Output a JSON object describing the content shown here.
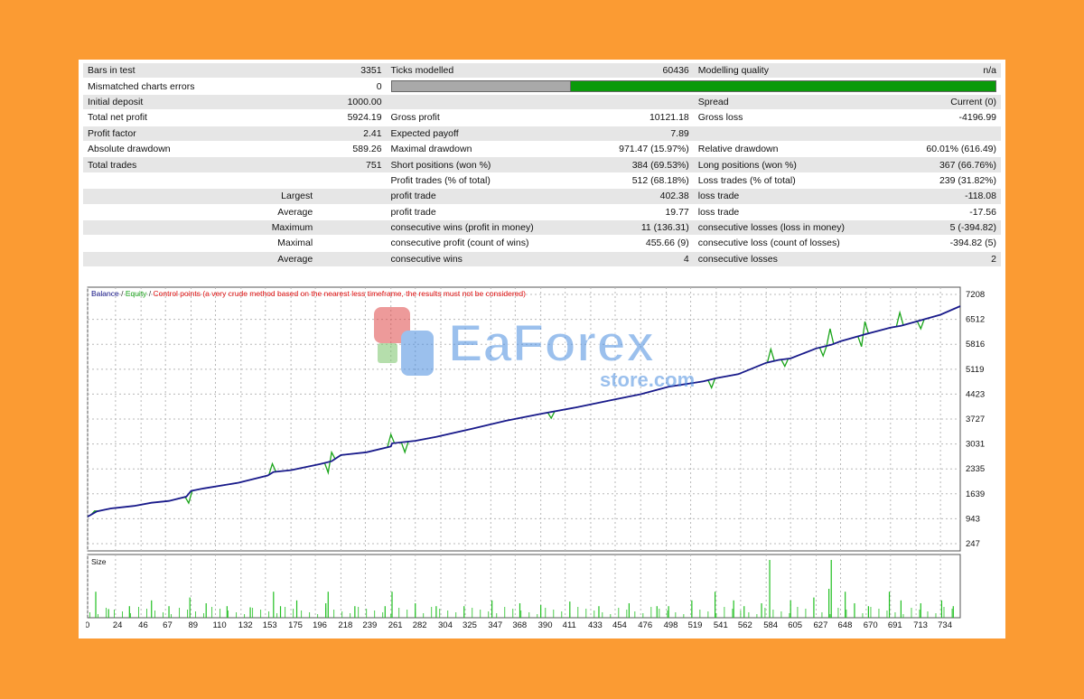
{
  "report": {
    "rows": [
      {
        "l1": "Bars in test",
        "v1": "3351",
        "l2": "Ticks modelled",
        "v2": "60436",
        "l3": "Modelling quality",
        "v3": "n/a"
      },
      {
        "l1": "Mismatched charts errors",
        "v1": "0",
        "bar": true
      },
      {
        "l1": "Initial deposit",
        "v1": "1000.00",
        "l2": "",
        "v2": "",
        "l3": "Spread",
        "v3": "Current (0)"
      },
      {
        "l1": "Total net profit",
        "v1": "5924.19",
        "l2": "Gross profit",
        "v2": "10121.18",
        "l3": "Gross loss",
        "v3": "-4196.99"
      },
      {
        "l1": "Profit factor",
        "v1": "2.41",
        "l2": "Expected payoff",
        "v2": "7.89",
        "l3": "",
        "v3": ""
      },
      {
        "l1": "Absolute drawdown",
        "v1": "589.26",
        "l2": "Maximal drawdown",
        "v2": "971.47 (15.97%)",
        "l3": "Relative drawdown",
        "v3": "60.01% (616.49)"
      },
      {
        "l1": "Total trades",
        "v1": "751",
        "l2": "Short positions (won %)",
        "v2": "384 (69.53%)",
        "l3": "Long positions (won %)",
        "v3": "367 (66.76%)"
      },
      {
        "l1": "",
        "v1": "",
        "l2": "Profit trades (% of total)",
        "v2": "512 (68.18%)",
        "l3": "Loss trades (% of total)",
        "v3": "239 (31.82%)"
      },
      {
        "l1": "Largest",
        "v1": "",
        "l2": "profit trade",
        "v2": "402.38",
        "l3": "loss trade",
        "v3": "-118.08",
        "right": true
      },
      {
        "l1": "Average",
        "v1": "",
        "l2": "profit trade",
        "v2": "19.77",
        "l3": "loss trade",
        "v3": "-17.56",
        "right": true
      },
      {
        "l1": "Maximum",
        "v1": "",
        "l2": "consecutive wins (profit in money)",
        "v2": "11 (136.31)",
        "l3": "consecutive losses (loss in money)",
        "v3": "5 (-394.82)",
        "right": true
      },
      {
        "l1": "Maximal",
        "v1": "",
        "l2": "consecutive profit (count of wins)",
        "v2": "455.66 (9)",
        "l3": "consecutive loss (count of losses)",
        "v3": "-394.82 (5)",
        "right": true
      },
      {
        "l1": "Average",
        "v1": "",
        "l2": "consecutive wins",
        "v2": "4",
        "l3": "consecutive losses",
        "v3": "2",
        "right": true
      }
    ]
  },
  "watermark": {
    "brand": "EaForex",
    "sub": "store.com"
  },
  "chart_data": {
    "type": "line",
    "legend": {
      "balance": "Balance",
      "equity": "Equity",
      "control": "Control points (a very crude method based on the nearest less timeframe, the results must not be considered)"
    },
    "colors": {
      "balance": "#1a1a8c",
      "equity": "#1aa51a",
      "control": "#e01010",
      "size": "#1fbf1f",
      "grid": "#b8b8b8"
    },
    "ylim": [
      247,
      7208
    ],
    "yticks": [
      7208,
      6512,
      5816,
      5119,
      4423,
      3727,
      3031,
      2335,
      1639,
      943,
      247
    ],
    "xlim": [
      0,
      751
    ],
    "xticks": [
      0,
      24,
      46,
      67,
      89,
      110,
      132,
      153,
      175,
      196,
      218,
      239,
      261,
      282,
      304,
      325,
      347,
      368,
      390,
      411,
      433,
      454,
      476,
      498,
      519,
      541,
      562,
      584,
      605,
      627,
      648,
      670,
      691,
      713,
      734
    ],
    "balance": [
      [
        0,
        1000
      ],
      [
        8,
        1150
      ],
      [
        20,
        1230
      ],
      [
        40,
        1300
      ],
      [
        55,
        1390
      ],
      [
        70,
        1440
      ],
      [
        85,
        1560
      ],
      [
        89,
        1720
      ],
      [
        100,
        1790
      ],
      [
        130,
        1950
      ],
      [
        155,
        2150
      ],
      [
        160,
        2250
      ],
      [
        175,
        2300
      ],
      [
        200,
        2470
      ],
      [
        210,
        2550
      ],
      [
        218,
        2720
      ],
      [
        240,
        2800
      ],
      [
        261,
        2960
      ],
      [
        262,
        3050
      ],
      [
        282,
        3120
      ],
      [
        300,
        3230
      ],
      [
        330,
        3450
      ],
      [
        360,
        3680
      ],
      [
        390,
        3870
      ],
      [
        420,
        4050
      ],
      [
        450,
        4250
      ],
      [
        476,
        4420
      ],
      [
        500,
        4630
      ],
      [
        530,
        4780
      ],
      [
        541,
        4870
      ],
      [
        560,
        4980
      ],
      [
        584,
        5300
      ],
      [
        595,
        5380
      ],
      [
        605,
        5420
      ],
      [
        627,
        5700
      ],
      [
        640,
        5800
      ],
      [
        648,
        5900
      ],
      [
        670,
        6100
      ],
      [
        691,
        6280
      ],
      [
        700,
        6330
      ],
      [
        713,
        6450
      ],
      [
        734,
        6640
      ],
      [
        751,
        6880
      ]
    ],
    "equity_dips": [
      [
        5,
        690
      ],
      [
        88,
        1380
      ],
      [
        158,
        1870
      ],
      [
        207,
        2230
      ],
      [
        260,
        2720
      ],
      [
        273,
        2800
      ],
      [
        398,
        3750
      ],
      [
        538,
        4600
      ],
      [
        587,
        4890
      ],
      [
        600,
        5200
      ],
      [
        632,
        5490
      ],
      [
        665,
        5750
      ],
      [
        698,
        6050
      ],
      [
        717,
        6250
      ]
    ],
    "equity_spikes": [
      [
        7,
        1160
      ],
      [
        160,
        2480
      ],
      [
        210,
        2800
      ],
      [
        261,
        3300
      ],
      [
        588,
        5680
      ],
      [
        640,
        6250
      ],
      [
        670,
        6450
      ],
      [
        700,
        6700
      ]
    ],
    "size_label": "Size",
    "size_bars": [
      [
        7,
        0.45
      ],
      [
        18,
        0.15
      ],
      [
        36,
        0.2
      ],
      [
        55,
        0.3
      ],
      [
        70,
        0.2
      ],
      [
        88,
        0.35
      ],
      [
        102,
        0.25
      ],
      [
        120,
        0.2
      ],
      [
        140,
        0.18
      ],
      [
        160,
        0.45
      ],
      [
        166,
        0.2
      ],
      [
        180,
        0.3
      ],
      [
        205,
        0.25
      ],
      [
        207,
        0.45
      ],
      [
        230,
        0.2
      ],
      [
        256,
        0.2
      ],
      [
        262,
        0.45
      ],
      [
        282,
        0.25
      ],
      [
        300,
        0.2
      ],
      [
        324,
        0.2
      ],
      [
        348,
        0.3
      ],
      [
        372,
        0.25
      ],
      [
        390,
        0.22
      ],
      [
        415,
        0.28
      ],
      [
        440,
        0.2
      ],
      [
        466,
        0.25
      ],
      [
        490,
        0.2
      ],
      [
        500,
        0.2
      ],
      [
        520,
        0.3
      ],
      [
        540,
        0.45
      ],
      [
        556,
        0.3
      ],
      [
        565,
        0.2
      ],
      [
        580,
        0.25
      ],
      [
        587,
        1.0
      ],
      [
        605,
        0.3
      ],
      [
        625,
        0.35
      ],
      [
        638,
        0.5
      ],
      [
        640,
        1.0
      ],
      [
        652,
        0.45
      ],
      [
        660,
        0.25
      ],
      [
        672,
        0.2
      ],
      [
        690,
        0.45
      ],
      [
        700,
        0.3
      ],
      [
        717,
        0.25
      ],
      [
        735,
        0.3
      ],
      [
        745,
        0.2
      ]
    ]
  }
}
